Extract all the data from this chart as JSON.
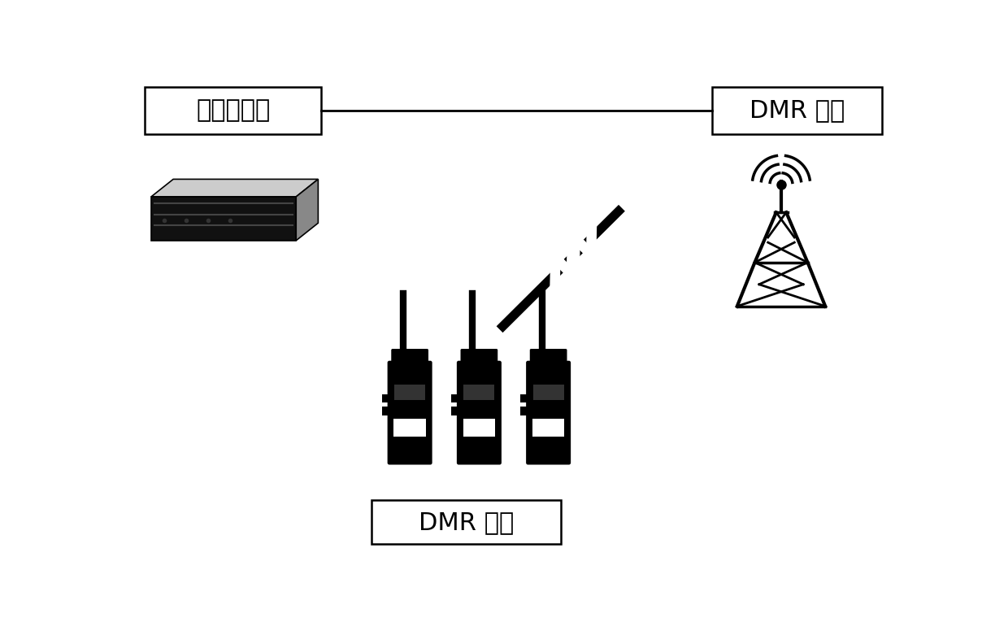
{
  "bg_color": "#ffffff",
  "box1_text": "中心服务器",
  "box2_text": "DMR 基站",
  "box3_text": "DMR 终端",
  "font_size_box": 22,
  "font_size_label": 18
}
